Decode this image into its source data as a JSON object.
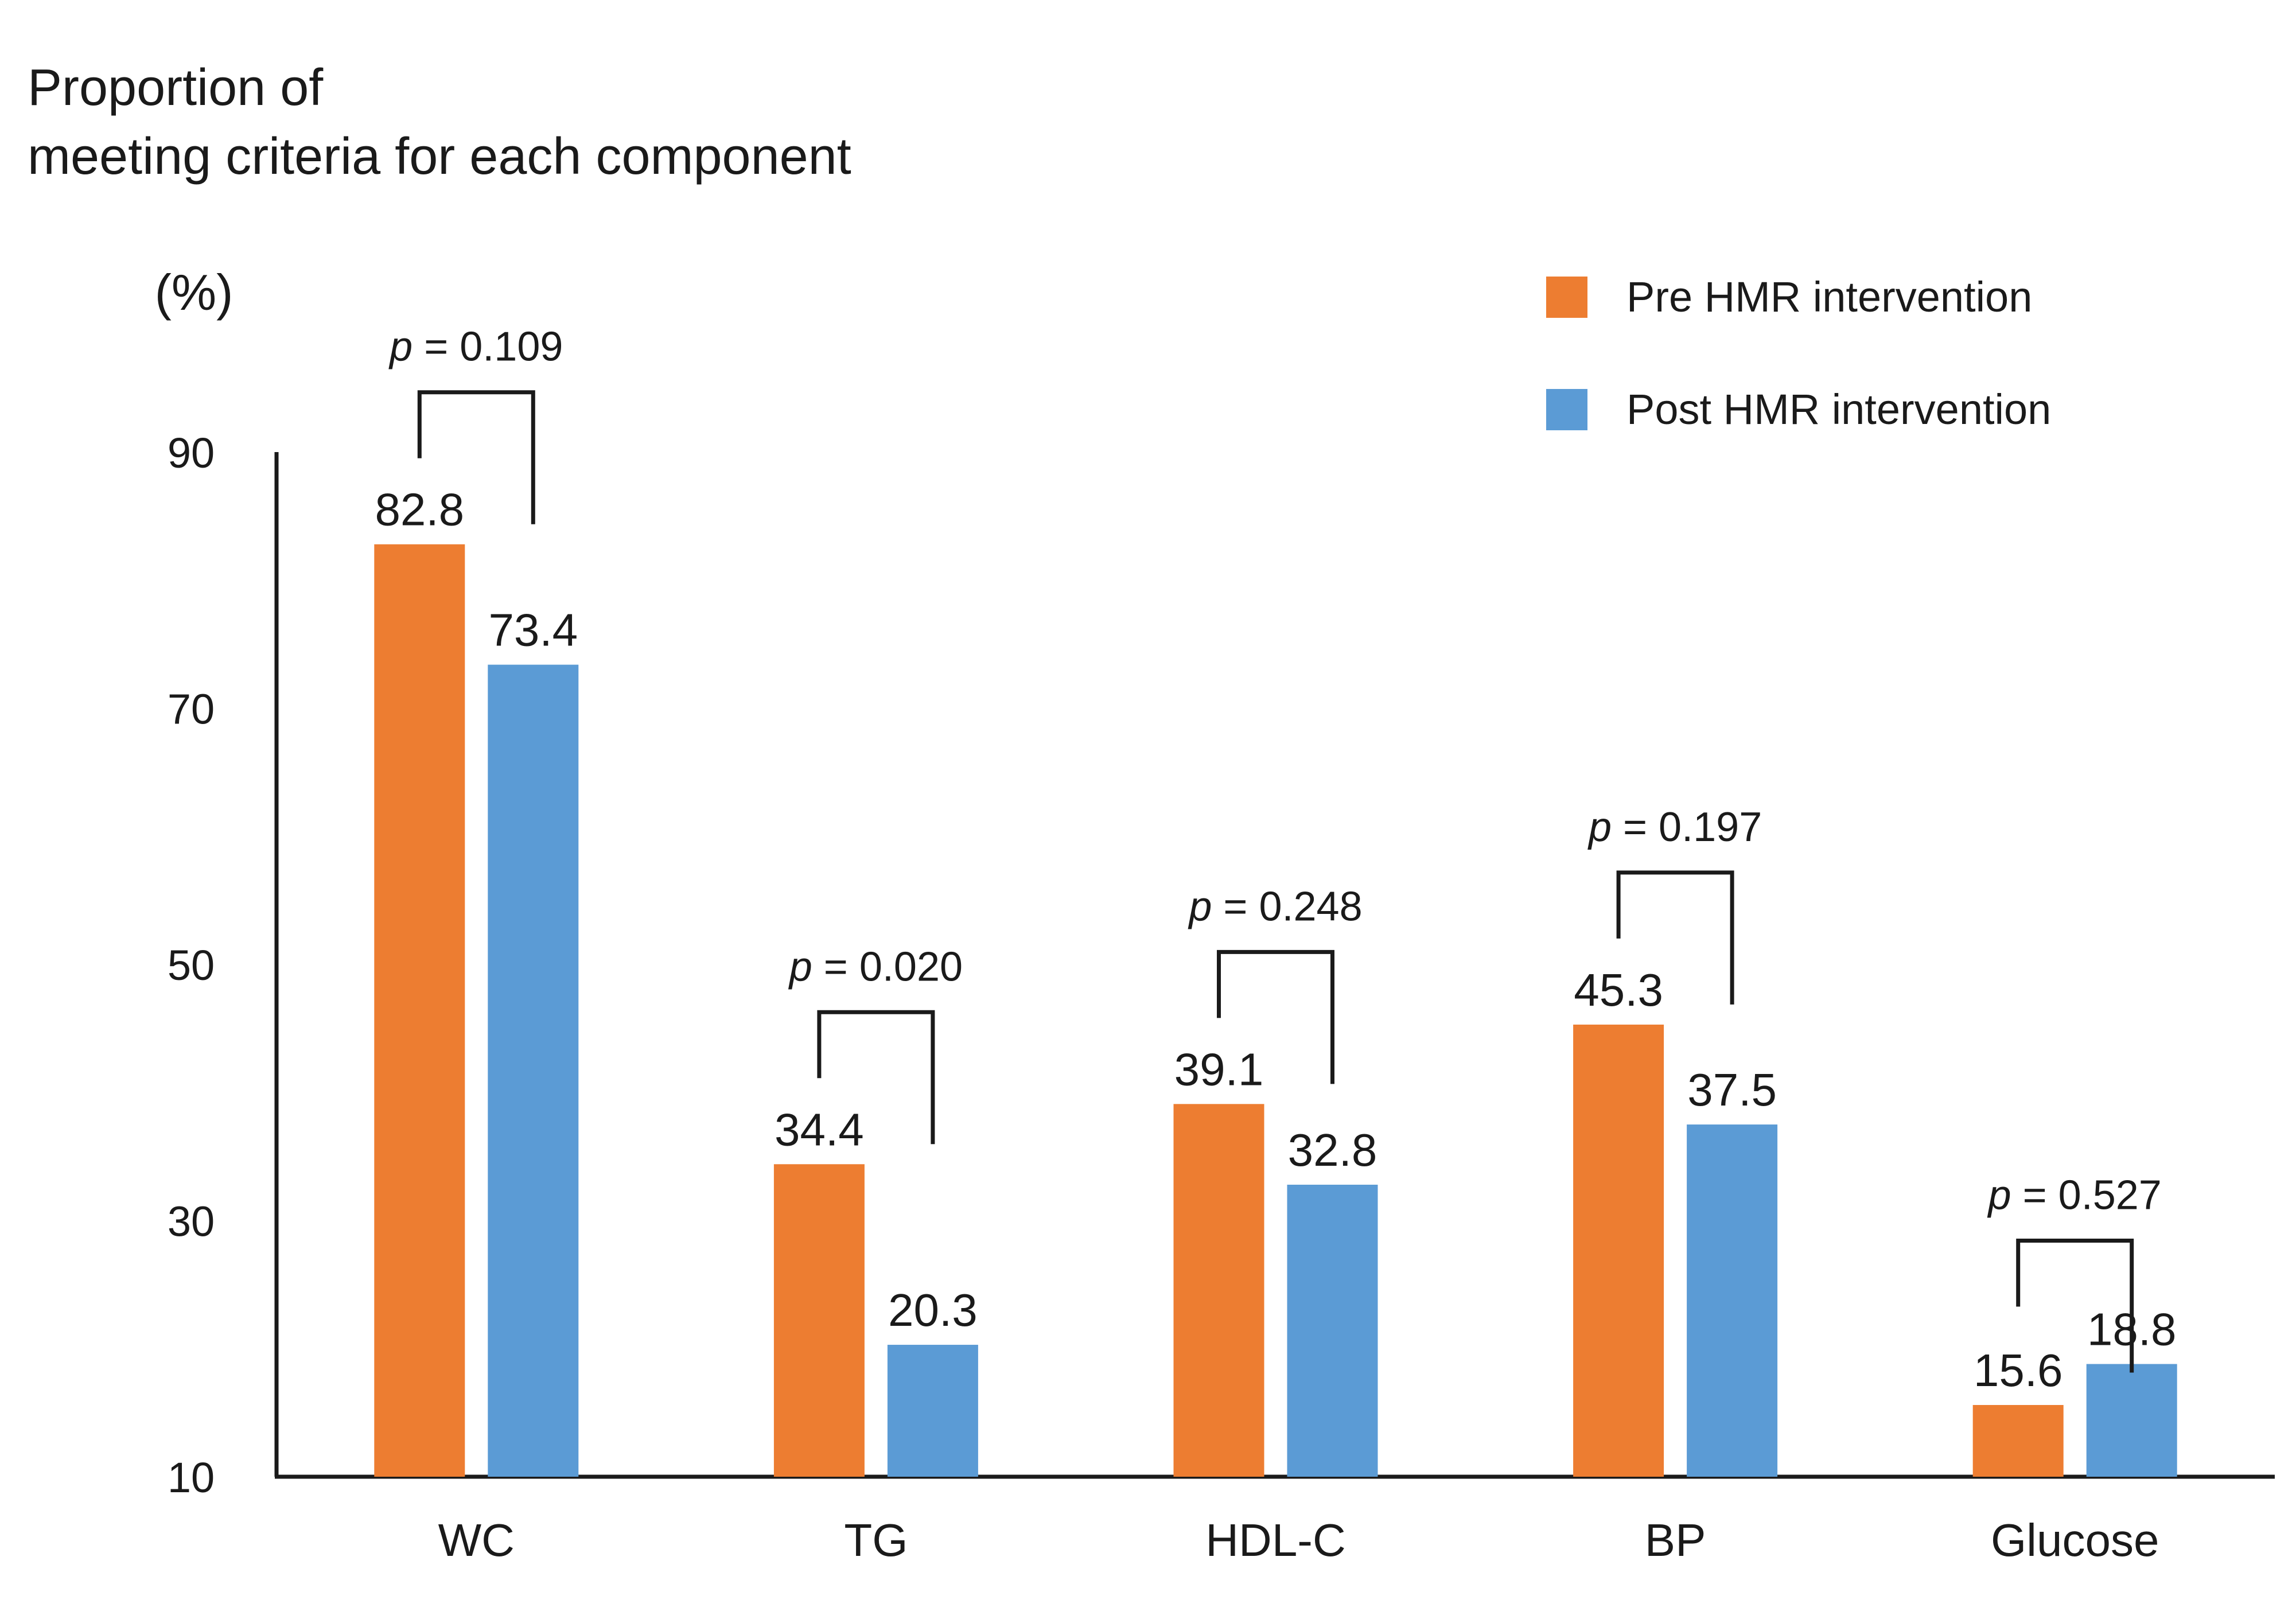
{
  "chart_data": {
    "type": "bar",
    "title_lines": [
      "Proportion of",
      "meeting criteria for each component"
    ],
    "ylabel": "(%)",
    "ylim": [
      10,
      90
    ],
    "yticks": [
      10,
      30,
      50,
      70,
      90
    ],
    "categories": [
      "WC",
      "TG",
      "HDL-C",
      "BP",
      "Glucose"
    ],
    "series": [
      {
        "name": "Pre HMR intervention",
        "color": "#ED7D31",
        "values": [
          82.8,
          34.4,
          39.1,
          45.3,
          15.6
        ],
        "labels": [
          "82.8",
          "34.4",
          "39.1",
          "45.3",
          "15.6"
        ]
      },
      {
        "name": "Post HMR intervention",
        "color": "#5B9BD5",
        "values": [
          73.4,
          20.3,
          32.8,
          37.5,
          18.8
        ],
        "labels": [
          "73.4",
          "20.3",
          "32.8",
          "37.5",
          "18.8"
        ]
      }
    ],
    "p_values": [
      {
        "category": "WC",
        "p_symbol": "p",
        "p_text": " = 0.109"
      },
      {
        "category": "TG",
        "p_symbol": "p",
        "p_text": " = 0.020"
      },
      {
        "category": "HDL-C",
        "p_symbol": "p",
        "p_text": " = 0.248"
      },
      {
        "category": "BP",
        "p_symbol": "p",
        "p_text": " = 0.197"
      },
      {
        "category": "Glucose",
        "p_symbol": "p",
        "p_text": " = 0.527"
      }
    ],
    "legend_position": "top-right",
    "grid": false
  }
}
